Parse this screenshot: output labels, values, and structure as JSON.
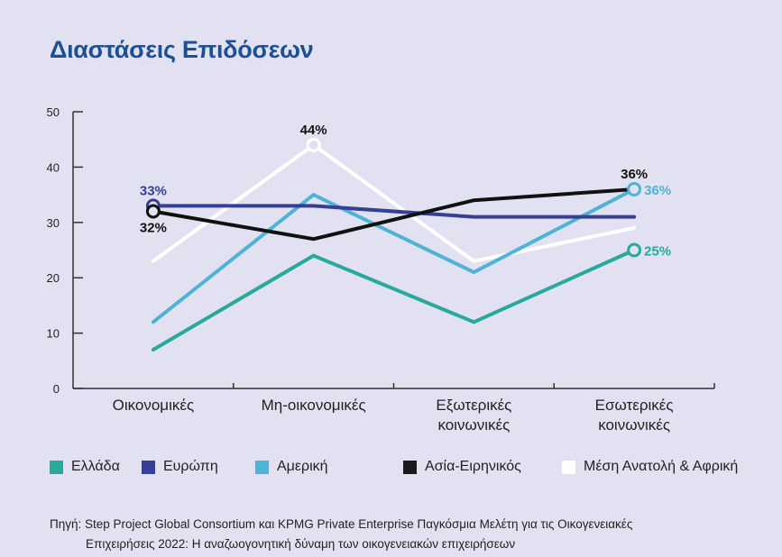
{
  "title": "Διαστάσεις Επιδόσεων",
  "chart_data": {
    "type": "line",
    "title": "Διαστάσεις Επιδόσεων",
    "xlabel": "",
    "ylabel": "",
    "ylim": [
      0,
      50
    ],
    "yticks": [
      0,
      10,
      20,
      30,
      40,
      50
    ],
    "grid": false,
    "legend_position": "bottom",
    "categories": [
      [
        "Οικονομικές"
      ],
      [
        "Μη-οικονομικές"
      ],
      [
        "Εξωτερικές",
        "κοινωνικές"
      ],
      [
        "Εσωτερικές",
        "κοινωνικές"
      ]
    ],
    "series": [
      {
        "name": "Ελλάδα",
        "color": "#27a99c",
        "values": [
          7,
          24,
          12,
          25
        ]
      },
      {
        "name": "Ευρώπη",
        "color": "#353f95",
        "values": [
          33,
          33,
          31,
          31
        ]
      },
      {
        "name": "Αμερική",
        "color": "#4db4d6",
        "values": [
          12,
          35,
          21,
          36
        ]
      },
      {
        "name": "Ασία-Ειρηνικός",
        "color": "#111111",
        "values": [
          32,
          27,
          34,
          36
        ]
      },
      {
        "name": "Μέση Ανατολή & Αφρική",
        "color": "#ffffff",
        "values": [
          23,
          44,
          23,
          29
        ]
      }
    ],
    "annotations": [
      {
        "series": 1,
        "index": 0,
        "text": "33%",
        "color": "#353f95",
        "position": "above"
      },
      {
        "series": 3,
        "index": 0,
        "text": "32%",
        "color": "#111111",
        "position": "below"
      },
      {
        "series": 4,
        "index": 1,
        "text": "44%",
        "color": "#111111",
        "position": "above"
      },
      {
        "series": 3,
        "index": 3,
        "text": "36%",
        "color": "#111111",
        "position": "above"
      },
      {
        "series": 2,
        "index": 3,
        "text": "36%",
        "color": "#4db4d6",
        "position": "right"
      },
      {
        "series": 0,
        "index": 3,
        "text": "25%",
        "color": "#27a99c",
        "position": "right"
      }
    ],
    "markers": [
      {
        "series": 1,
        "index": 0
      },
      {
        "series": 3,
        "index": 0
      },
      {
        "series": 4,
        "index": 1
      },
      {
        "series": 2,
        "index": 3
      },
      {
        "series": 0,
        "index": 3
      }
    ]
  },
  "legend": [
    {
      "label": "Ελλάδα",
      "color": "#27a99c"
    },
    {
      "label": "Ευρώπη",
      "color": "#353f95"
    },
    {
      "label": "Αμερική",
      "color": "#4db4d6"
    },
    {
      "label": "Ασία-Ειρηνικός",
      "color": "#1a1a1a"
    },
    {
      "label": "Μέση Ανατολή & Αφρική",
      "color": "#ffffff"
    }
  ],
  "source": {
    "line1": "Πηγή: Step Project Global Consortium και KPMG Private Enterprise Παγκόσμια Μελέτη για τις Οικογενειακές",
    "line2": "Επιχειρήσεις 2022: Η αναζωογονητική δύναμη των οικογενειακών επιχειρήσεων"
  }
}
